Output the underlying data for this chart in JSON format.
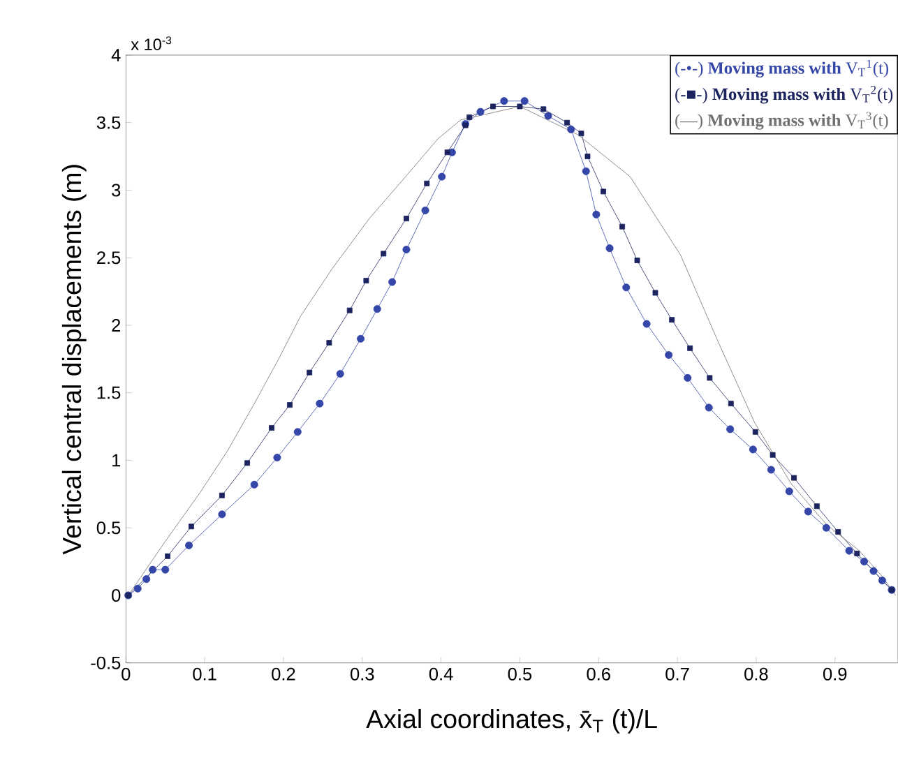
{
  "chart_data": {
    "type": "line",
    "xlabel": "Axial coordinates, x̄$_{T}$ (t)/L",
    "ylabel": "Vertical central displacements (m)",
    "annotations": [
      "x 10$^{-3}$"
    ],
    "xlim": [
      0,
      0.98
    ],
    "ylim": [
      -0.5,
      4
    ],
    "xticks": [
      0,
      0.1,
      0.2,
      0.3,
      0.4,
      0.5,
      0.6,
      0.7,
      0.8,
      0.9
    ],
    "yticks": [
      -0.5,
      0,
      0.5,
      1,
      1.5,
      2,
      2.5,
      3,
      3.5,
      4
    ],
    "legend": "top right",
    "series": [
      {
        "name": "(-•-) **Moving mass with** V$_{T}$$^{1}$(t)",
        "color": "#3446a8",
        "marker": "circle",
        "x": [
          0.003,
          0.015,
          0.026,
          0.034,
          0.05,
          0.08,
          0.122,
          0.163,
          0.192,
          0.218,
          0.246,
          0.272,
          0.298,
          0.319,
          0.338,
          0.356,
          0.38,
          0.401,
          0.414,
          0.431,
          0.45,
          0.48,
          0.506,
          0.536,
          0.565,
          0.584,
          0.597,
          0.614,
          0.635,
          0.661,
          0.689,
          0.713,
          0.74,
          0.767,
          0.796,
          0.819,
          0.842,
          0.866,
          0.889,
          0.918,
          0.937,
          0.949,
          0.96,
          0.972
        ],
        "values": [
          0,
          0.05,
          0.12,
          0.19,
          0.19,
          0.37,
          0.6,
          0.82,
          1.02,
          1.21,
          1.42,
          1.64,
          1.9,
          2.12,
          2.32,
          2.56,
          2.85,
          3.1,
          3.28,
          3.49,
          3.58,
          3.66,
          3.66,
          3.55,
          3.45,
          3.14,
          2.82,
          2.57,
          2.28,
          2.01,
          1.78,
          1.61,
          1.39,
          1.23,
          1.08,
          0.93,
          0.77,
          0.62,
          0.5,
          0.33,
          0.25,
          0.18,
          0.11,
          0.04
        ]
      },
      {
        "name": "(-■-) **Moving mass with** V$_{T}$$^{2}$(t)",
        "color": "#1c2460",
        "marker": "square",
        "x": [
          0.003,
          0.053,
          0.083,
          0.122,
          0.154,
          0.185,
          0.208,
          0.233,
          0.258,
          0.284,
          0.305,
          0.327,
          0.356,
          0.382,
          0.408,
          0.431,
          0.436,
          0.466,
          0.5,
          0.53,
          0.56,
          0.578,
          0.586,
          0.606,
          0.63,
          0.649,
          0.672,
          0.693,
          0.716,
          0.741,
          0.768,
          0.799,
          0.821,
          0.848,
          0.877,
          0.904,
          0.928,
          0.972
        ],
        "values": [
          0,
          0.29,
          0.51,
          0.74,
          0.98,
          1.24,
          1.41,
          1.65,
          1.87,
          2.11,
          2.33,
          2.53,
          2.79,
          3.05,
          3.28,
          3.48,
          3.54,
          3.62,
          3.62,
          3.6,
          3.5,
          3.42,
          3.25,
          2.99,
          2.73,
          2.48,
          2.24,
          2.04,
          1.83,
          1.61,
          1.42,
          1.21,
          1.04,
          0.87,
          0.66,
          0.47,
          0.31,
          0.04
        ]
      },
      {
        "name": "(—) **Moving mass with** V$_{T}$$^{3}$(t)",
        "color": "#707070",
        "marker": "none",
        "x": [
          0.003,
          0.05,
          0.094,
          0.129,
          0.163,
          0.192,
          0.222,
          0.262,
          0.309,
          0.355,
          0.396,
          0.425,
          0.5,
          0.574,
          0.64,
          0.704,
          0.75,
          0.798,
          0.844,
          0.89,
          0.931,
          0.96,
          0.977
        ],
        "values": [
          0,
          0.4,
          0.76,
          1.07,
          1.42,
          1.73,
          2.07,
          2.42,
          2.79,
          3.1,
          3.38,
          3.52,
          3.62,
          3.41,
          3.1,
          2.52,
          1.9,
          1.28,
          0.83,
          0.52,
          0.33,
          0.14,
          0
        ]
      }
    ]
  }
}
